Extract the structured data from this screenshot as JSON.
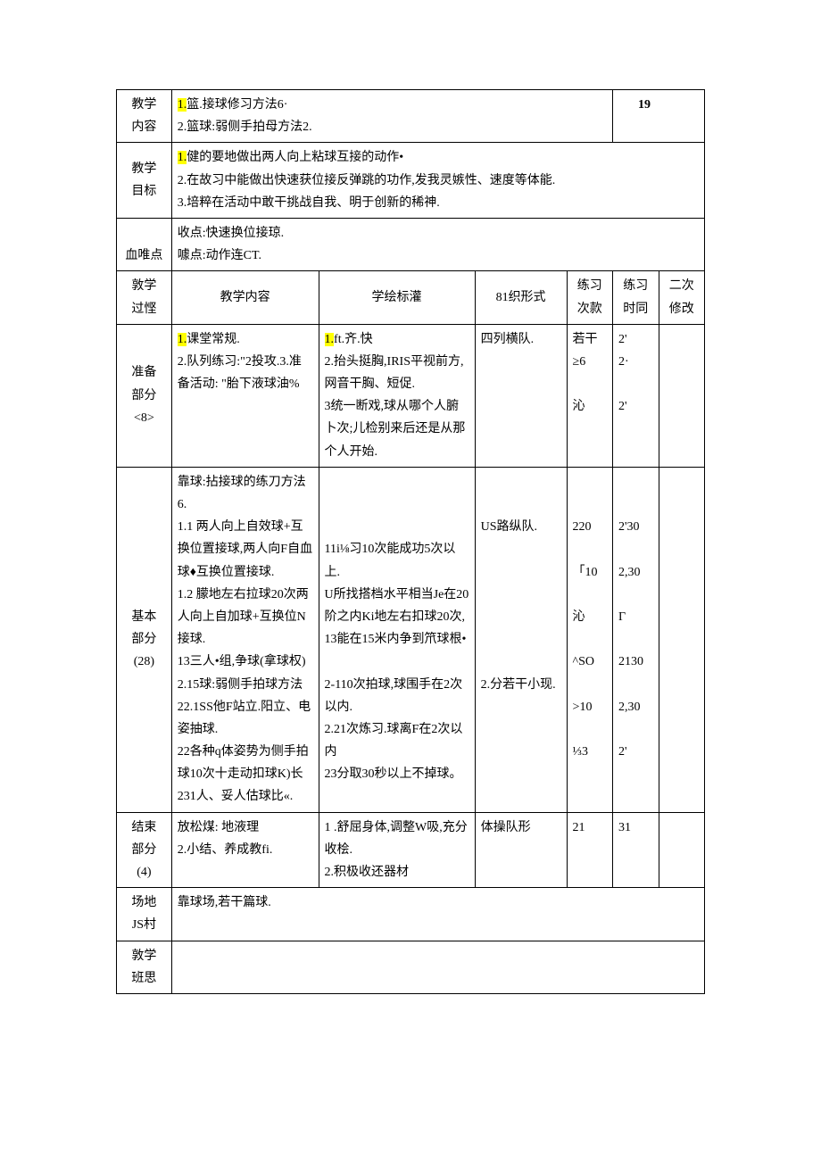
{
  "page_number": "19",
  "rows": {
    "r1_label1": "教学",
    "r1_label2": "内容",
    "r1_line1_hl": "1.",
    "r1_line1_rest": "篮.接球修习方法6·",
    "r1_line2": "2.篮球:弱侧手拍母方法2.",
    "r2_label1": "教学",
    "r2_label2": "目标",
    "r2_line1_hl": "1.",
    "r2_line1_rest": "健的要地做出两人向上粘球互接的动作•",
    "r2_line2": "2.在故习中能做出快速获位接反弹跳的功作,发我灵嫉性、速度等体能.",
    "r2_line3": "3.培粹在活动中敢干挑战自我、明于创新的稀神.",
    "r3_label": "血唯点",
    "r3_line1": "收点:快速换位接琼.",
    "r3_line2": "噱点:动作连CT.",
    "h_label1": "敦学",
    "h_label2": "过悭",
    "h_c1": "教学内容",
    "h_c2": "学绘标灌",
    "h_c3": "81织形式",
    "h_c4a": "练习",
    "h_c4b": "次款",
    "h_c5a": "练习",
    "h_c5b": "时同",
    "h_c6a": "二次",
    "h_c6b": "修改",
    "prep_label1": "准备",
    "prep_label2": "部分",
    "prep_label3": "<8>",
    "prep_c1_l1_hl": "1.",
    "prep_c1_l1_rest": "课堂常规.",
    "prep_c1_l2": "2.队列练习:\"2投攻.3.准备活动:   \"胎下液球油%",
    "prep_c2_l1_hl": "1.",
    "prep_c2_l1_rest": "ft.齐.快",
    "prep_c2_l2": "2.抬头挺胸,IRIS平视前方,网音干胸、短促.",
    "prep_c2_l3": "3统一断戏,球从哪个人腑卜次;儿检别来后还是从那个人开始.",
    "prep_c3": "四列横队.",
    "prep_c4_l1": "若干",
    "prep_c4_l2": "≥6",
    "prep_c4_l3": "沁",
    "prep_c5_l1": "2'",
    "prep_c5_l2": "2·",
    "prep_c5_l3": "2'",
    "basic_label1": "基本",
    "basic_label2": "部分",
    "basic_label3": "(28)",
    "basic_c1_l1": "靠球:拈接球的练刀方法6.",
    "basic_c1_l2": "1.1  两人向上自效球+互换位置接球,两人向F自血球♦互换位置接球.",
    "basic_c1_l3": "1.2  朦地左右拉球20次两人向上自加球+互换位N接球.",
    "basic_c1_l4": "13三人•组,争球(拿球权)",
    "basic_c1_l5": "2.15球:弱侧手拍球方法",
    "basic_c1_l6": "22.1SS他F站立.阳立、电姿抽球.",
    "basic_c1_l7": "22各种q体姿势为侧手拍球10次十走动扣球K)长231人、妥人估球比«.",
    "basic_c2_l1": "11i⅛习10次能成功5次以上.",
    "basic_c2_l2": "U所找搭档水平相当Je在20阶之内Ki地左右扣球20次,",
    "basic_c2_l3": "13能在15米内争到笊球根•",
    "basic_c2_l4": "2-110次拍球,球围手在2次以内.",
    "basic_c2_l5": "2.21次炼习.球离F在2次以内",
    "basic_c2_l6": "23分取30秒以上不掉球。",
    "basic_c3_l1": "US路纵队.",
    "basic_c3_l2": "2.分若干小现.",
    "basic_c4_l1": "220",
    "basic_c4_l2": "「10",
    "basic_c4_l3": "沁",
    "basic_c4_l4": "^SO",
    "basic_c4_l5": ">10",
    "basic_c4_l6": "⅓3",
    "basic_c5_l1": "2'30",
    "basic_c5_l2": "2,30",
    "basic_c5_l3": "Γ",
    "basic_c5_l4": "2130",
    "basic_c5_l5": "2,30",
    "basic_c5_l6": "2'",
    "end_label1": "结束",
    "end_label2": "部分",
    "end_label3": "(4)",
    "end_c1_l1": "放松煤:  地液理",
    "end_c1_l2": "2.小结、养成教fi.",
    "end_c2_l1": "1        .舒屈身体,调整W吸,充分",
    "end_c2_l2": "收桧.",
    "end_c2_l3": "2.积极收还器材",
    "end_c3": "体操队形",
    "end_c4": "21",
    "end_c5": "31",
    "field_label1": "场地",
    "field_label2": "JS村",
    "field_c1": "靠球场,若干篇球.",
    "reflect_label1": "敦学",
    "reflect_label2": "班思"
  }
}
